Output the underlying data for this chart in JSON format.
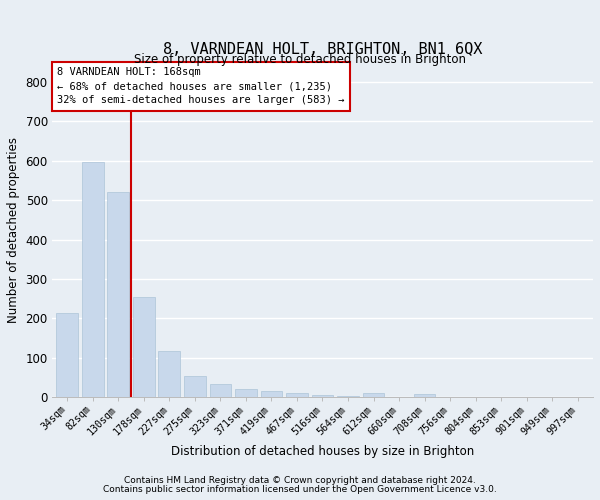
{
  "title": "8, VARNDEAN HOLT, BRIGHTON, BN1 6QX",
  "subtitle": "Size of property relative to detached houses in Brighton",
  "xlabel": "Distribution of detached houses by size in Brighton",
  "ylabel": "Number of detached properties",
  "bar_color": "#c8d8eb",
  "bar_edge_color": "#adc4d8",
  "background_color": "#e8eef4",
  "grid_color": "#ffffff",
  "vline_color": "#cc0000",
  "annotation_box_color": "#cc0000",
  "annotation_text": "8 VARNDEAN HOLT: 168sqm\n← 68% of detached houses are smaller (1,235)\n32% of semi-detached houses are larger (583) →",
  "categories": [
    "34sqm",
    "82sqm",
    "130sqm",
    "178sqm",
    "227sqm",
    "275sqm",
    "323sqm",
    "371sqm",
    "419sqm",
    "467sqm",
    "516sqm",
    "564sqm",
    "612sqm",
    "660sqm",
    "708sqm",
    "756sqm",
    "804sqm",
    "853sqm",
    "901sqm",
    "949sqm",
    "997sqm"
  ],
  "values": [
    213,
    596,
    522,
    255,
    118,
    54,
    33,
    20,
    17,
    10,
    5,
    3,
    10,
    0,
    8,
    0,
    0,
    0,
    0,
    0,
    0
  ],
  "ylim": [
    0,
    850
  ],
  "yticks": [
    0,
    100,
    200,
    300,
    400,
    500,
    600,
    700,
    800
  ],
  "vline_x": 2.5,
  "footnote1": "Contains HM Land Registry data © Crown copyright and database right 2024.",
  "footnote2": "Contains public sector information licensed under the Open Government Licence v3.0."
}
